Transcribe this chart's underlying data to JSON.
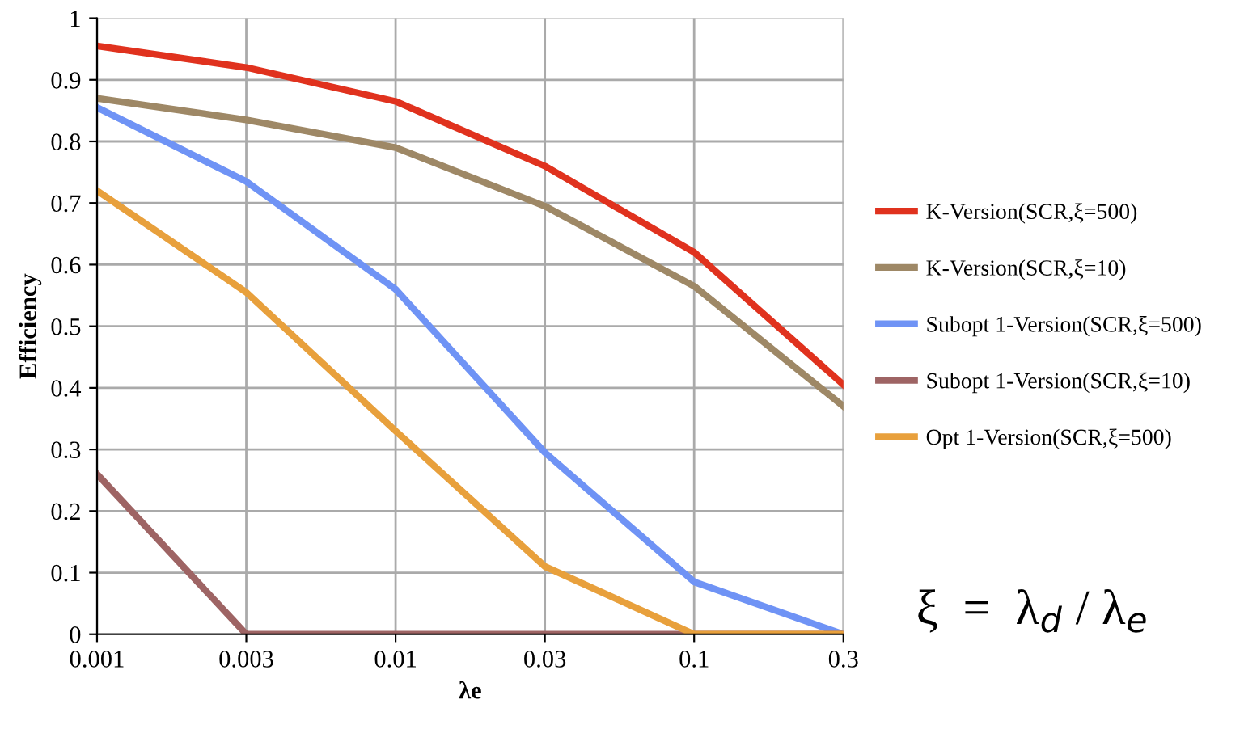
{
  "chart_data": {
    "type": "line",
    "xlabel": "λe",
    "ylabel": "Efficiency",
    "categories": [
      "0.001",
      "0.003",
      "0.01",
      "0.03",
      "0.1",
      "0.3"
    ],
    "series": [
      {
        "name": "K-Version(SCR,ξ=500)",
        "color": "#e0321e",
        "values": [
          0.955,
          0.92,
          0.865,
          0.76,
          0.62,
          0.405
        ]
      },
      {
        "name": "K-Version(SCR,ξ=10)",
        "color": "#9e8866",
        "values": [
          0.87,
          0.835,
          0.79,
          0.695,
          0.565,
          0.37
        ]
      },
      {
        "name": "Subopt 1-Version(SCR,ξ=500)",
        "color": "#6f93f5",
        "values": [
          0.855,
          0.735,
          0.56,
          0.295,
          0.085,
          0.0
        ]
      },
      {
        "name": "Subopt 1-Version(SCR,ξ=10)",
        "color": "#9e6464",
        "values": [
          0.26,
          0.0,
          0.0,
          0.0,
          0.0,
          0.0
        ]
      },
      {
        "name": "Opt 1-Version(SCR,ξ=500)",
        "color": "#e8a03c",
        "values": [
          0.72,
          0.555,
          0.33,
          0.11,
          0.0,
          0.0
        ]
      }
    ],
    "ylim": [
      0,
      1
    ],
    "yticks": [
      0,
      0.1,
      0.2,
      0.3,
      0.4,
      0.5,
      0.6,
      0.7,
      0.8,
      0.9,
      1
    ],
    "grid": true,
    "legend": "right",
    "marker": "none",
    "line_style": "solid",
    "annotations": [
      "ξ  =  λ$_{d}$ / λ$_{e}$"
    ]
  }
}
